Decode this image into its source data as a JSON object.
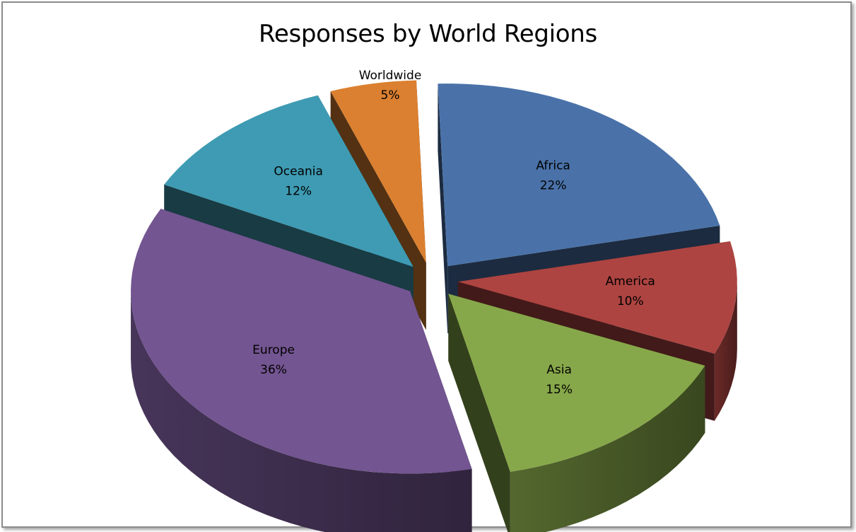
{
  "chart_data": {
    "type": "pie",
    "title": "Responses by World Regions",
    "style": "3d-exploded",
    "slices": [
      {
        "label": "Africa",
        "value": 22,
        "display": "22%",
        "color": "#4a72a9"
      },
      {
        "label": "America",
        "value": 10,
        "display": "10%",
        "color": "#ad4441"
      },
      {
        "label": "Asia",
        "value": 15,
        "display": "15%",
        "color": "#87a84a"
      },
      {
        "label": "Europe",
        "value": 36,
        "display": "36%",
        "color": "#735591"
      },
      {
        "label": "Oceania",
        "value": 12,
        "display": "12%",
        "color": "#3e9bb3"
      },
      {
        "label": "Worldwide",
        "value": 5,
        "display": "5%",
        "color": "#db8030"
      }
    ]
  }
}
